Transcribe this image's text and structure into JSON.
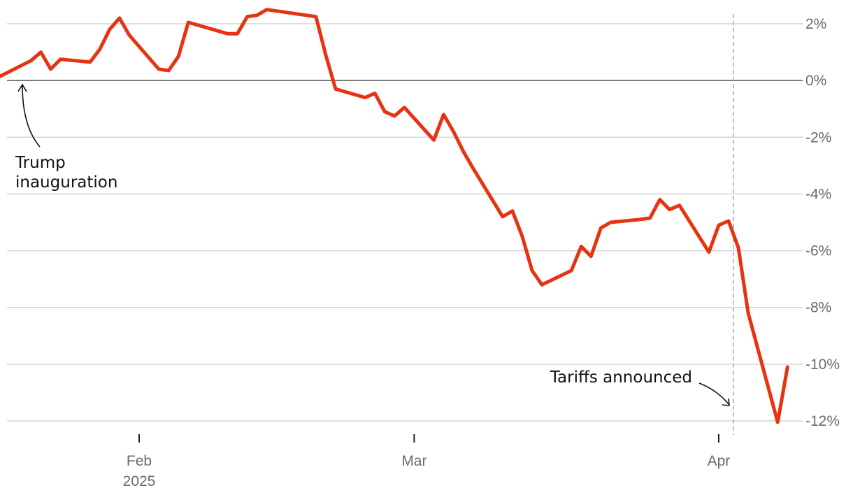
{
  "chart_data": {
    "type": "line",
    "title": "",
    "xlabel": "",
    "ylabel": "",
    "ylim": [
      -12,
      2
    ],
    "y_ticks": [
      2,
      0,
      -2,
      -4,
      -6,
      -8,
      -10,
      -12
    ],
    "y_tick_labels": [
      "2%",
      "0%",
      "-2%",
      "-4%",
      "-6%",
      "-8%",
      "-10%",
      "-12%"
    ],
    "x_ticks": [
      {
        "date": "2025-02-01",
        "label": "Feb",
        "sublabel": "2025"
      },
      {
        "date": "2025-03-01",
        "label": "Mar",
        "sublabel": ""
      },
      {
        "date": "2025-04-01",
        "label": "Apr",
        "sublabel": ""
      }
    ],
    "grid": true,
    "series": [
      {
        "color": "#e63312",
        "points": [
          {
            "x": "2025-01-17",
            "y": 0.0
          },
          {
            "x": "2025-01-21",
            "y": 0.7
          },
          {
            "x": "2025-01-22",
            "y": 1.0
          },
          {
            "x": "2025-01-23",
            "y": 0.4
          },
          {
            "x": "2025-01-24",
            "y": 0.75
          },
          {
            "x": "2025-01-27",
            "y": 0.65
          },
          {
            "x": "2025-01-28",
            "y": 1.1
          },
          {
            "x": "2025-01-29",
            "y": 1.8
          },
          {
            "x": "2025-01-30",
            "y": 2.2
          },
          {
            "x": "2025-01-31",
            "y": 1.6
          },
          {
            "x": "2025-02-03",
            "y": 0.4
          },
          {
            "x": "2025-02-04",
            "y": 0.35
          },
          {
            "x": "2025-02-05",
            "y": 0.85
          },
          {
            "x": "2025-02-06",
            "y": 2.05
          },
          {
            "x": "2025-02-07",
            "y": 1.95
          },
          {
            "x": "2025-02-10",
            "y": 1.65
          },
          {
            "x": "2025-02-11",
            "y": 1.65
          },
          {
            "x": "2025-02-12",
            "y": 2.25
          },
          {
            "x": "2025-02-13",
            "y": 2.3
          },
          {
            "x": "2025-02-14",
            "y": 2.5
          },
          {
            "x": "2025-02-18",
            "y": 2.3
          },
          {
            "x": "2025-02-19",
            "y": 2.25
          },
          {
            "x": "2025-02-20",
            "y": 0.9
          },
          {
            "x": "2025-02-21",
            "y": -0.3
          },
          {
            "x": "2025-02-24",
            "y": -0.6
          },
          {
            "x": "2025-02-25",
            "y": -0.45
          },
          {
            "x": "2025-02-26",
            "y": -1.1
          },
          {
            "x": "2025-02-27",
            "y": -1.25
          },
          {
            "x": "2025-02-28",
            "y": -0.95
          },
          {
            "x": "2025-03-03",
            "y": -2.1
          },
          {
            "x": "2025-03-04",
            "y": -1.2
          },
          {
            "x": "2025-03-05",
            "y": -1.8
          },
          {
            "x": "2025-03-06",
            "y": -2.5
          },
          {
            "x": "2025-03-07",
            "y": -3.1
          },
          {
            "x": "2025-03-10",
            "y": -4.8
          },
          {
            "x": "2025-03-11",
            "y": -4.6
          },
          {
            "x": "2025-03-12",
            "y": -5.5
          },
          {
            "x": "2025-03-13",
            "y": -6.7
          },
          {
            "x": "2025-03-14",
            "y": -7.2
          },
          {
            "x": "2025-03-17",
            "y": -6.7
          },
          {
            "x": "2025-03-18",
            "y": -5.85
          },
          {
            "x": "2025-03-19",
            "y": -6.2
          },
          {
            "x": "2025-03-20",
            "y": -5.2
          },
          {
            "x": "2025-03-21",
            "y": -5.0
          },
          {
            "x": "2025-03-24",
            "y": -4.9
          },
          {
            "x": "2025-03-25",
            "y": -4.85
          },
          {
            "x": "2025-03-26",
            "y": -4.2
          },
          {
            "x": "2025-03-27",
            "y": -4.55
          },
          {
            "x": "2025-03-28",
            "y": -4.4
          },
          {
            "x": "2025-03-31",
            "y": -6.05
          },
          {
            "x": "2025-04-01",
            "y": -5.1
          },
          {
            "x": "2025-04-02",
            "y": -4.95
          },
          {
            "x": "2025-04-03",
            "y": -5.9
          },
          {
            "x": "2025-04-04",
            "y": -8.2
          },
          {
            "x": "2025-04-07",
            "y": -12.05
          },
          {
            "x": "2025-04-08",
            "y": -10.1
          }
        ]
      }
    ],
    "annotations": [
      {
        "lines": [
          "Trump",
          "inauguration"
        ],
        "date": "2025-01-17"
      },
      {
        "lines": [
          "Tariffs announced"
        ],
        "date": "2025-04-02"
      }
    ]
  }
}
